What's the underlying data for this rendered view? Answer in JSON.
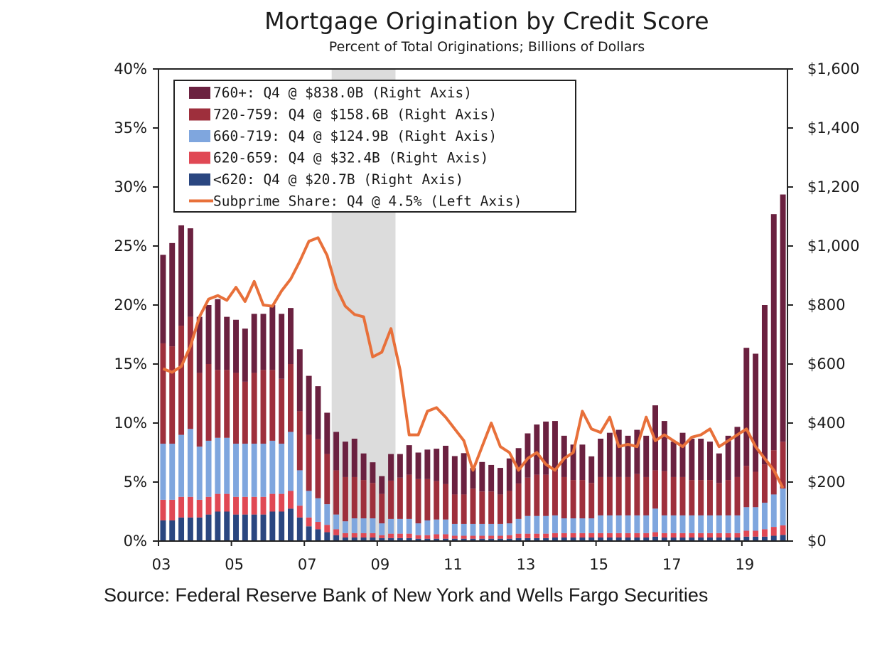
{
  "chart_data": {
    "type": "bar",
    "title": "Mortgage Origination by Credit Score",
    "subtitle": "Percent of Total Originations; Billions of Dollars",
    "source": "Source: Federal Reserve Bank of New York and Wells Fargo Securities",
    "x_ticks": [
      "03",
      "05",
      "07",
      "09",
      "11",
      "13",
      "15",
      "17",
      "19"
    ],
    "left_axis": {
      "ticks": [
        "0%",
        "5%",
        "10%",
        "15%",
        "20%",
        "25%",
        "30%",
        "35%",
        "40%"
      ],
      "ylim": [
        0,
        40
      ]
    },
    "right_axis": {
      "ticks": [
        "$0",
        "$200",
        "$400",
        "$600",
        "$800",
        "$1,000",
        "$1,200",
        "$1,400",
        "$1,600"
      ],
      "ylim": [
        0,
        1600
      ]
    },
    "recession_shading": {
      "start": "2007Q4",
      "end": "2009Q2"
    },
    "start_quarter": "2003Q1",
    "series": [
      {
        "name": "760+: Q4 @ $838.0B (Right Axis)",
        "color": "#6b2140",
        "type": "bar",
        "axis": "right",
        "values": [
          300,
          350,
          340,
          300,
          190,
          200,
          240,
          180,
          180,
          180,
          200,
          190,
          220,
          220,
          190,
          210,
          200,
          180,
          140,
          130,
          120,
          130,
          90,
          70,
          60,
          90,
          80,
          100,
          90,
          100,
          110,
          130,
          130,
          140,
          70,
          100,
          90,
          90,
          110,
          120,
          150,
          170,
          180,
          170,
          140,
          120,
          120,
          90,
          130,
          150,
          160,
          140,
          150,
          140,
          220,
          170,
          120,
          150,
          140,
          140,
          130,
          100,
          150,
          170,
          400,
          400,
          540,
          800,
          838
        ]
      },
      {
        "name": "720-759: Q4 @ $158.6B (Right Axis)",
        "color": "#9e2f3c",
        "type": "bar",
        "axis": "right",
        "values": [
          340,
          330,
          370,
          380,
          250,
          260,
          230,
          230,
          240,
          210,
          240,
          250,
          240,
          220,
          230,
          200,
          190,
          200,
          170,
          150,
          150,
          140,
          130,
          120,
          100,
          130,
          140,
          150,
          150,
          140,
          130,
          120,
          100,
          100,
          120,
          110,
          110,
          100,
          110,
          120,
          130,
          140,
          140,
          150,
          140,
          130,
          130,
          120,
          130,
          130,
          130,
          130,
          140,
          130,
          130,
          150,
          130,
          130,
          120,
          120,
          120,
          110,
          120,
          130,
          140,
          120,
          130,
          150,
          158.6
        ]
      },
      {
        "name": "660-719: Q4 @ $124.9B (Right Axis)",
        "color": "#7fa6de",
        "type": "bar",
        "axis": "right",
        "values": [
          190,
          190,
          210,
          230,
          180,
          190,
          190,
          190,
          180,
          180,
          180,
          180,
          180,
          170,
          200,
          120,
          90,
          80,
          70,
          50,
          40,
          50,
          50,
          50,
          40,
          50,
          50,
          50,
          40,
          50,
          50,
          50,
          40,
          40,
          40,
          40,
          40,
          40,
          40,
          50,
          60,
          60,
          60,
          60,
          50,
          50,
          50,
          50,
          60,
          60,
          60,
          60,
          60,
          60,
          80,
          60,
          60,
          60,
          60,
          60,
          60,
          60,
          60,
          60,
          80,
          80,
          90,
          110,
          124.9
        ]
      },
      {
        "name": "620-659: Q4 @ $32.4B (Right Axis)",
        "color": "#e04854",
        "type": "bar",
        "axis": "right",
        "values": [
          70,
          70,
          70,
          70,
          60,
          60,
          60,
          60,
          60,
          60,
          60,
          60,
          60,
          60,
          60,
          40,
          30,
          25,
          25,
          20,
          15,
          15,
          15,
          15,
          10,
          15,
          15,
          15,
          12,
          12,
          15,
          15,
          10,
          10,
          10,
          10,
          10,
          10,
          12,
          15,
          15,
          15,
          15,
          15,
          15,
          15,
          15,
          15,
          15,
          15,
          15,
          15,
          15,
          15,
          15,
          15,
          15,
          15,
          15,
          15,
          15,
          15,
          15,
          15,
          20,
          20,
          25,
          30,
          32.4
        ]
      },
      {
        "name": "<620: Q4 @ $20.7B (Right Axis)",
        "color": "#2a4680",
        "type": "bar",
        "axis": "right",
        "values": [
          70,
          70,
          80,
          80,
          80,
          90,
          100,
          100,
          90,
          90,
          90,
          90,
          100,
          100,
          110,
          80,
          50,
          40,
          30,
          20,
          12,
          12,
          12,
          12,
          10,
          10,
          10,
          10,
          8,
          8,
          8,
          8,
          8,
          8,
          8,
          8,
          8,
          8,
          8,
          10,
          10,
          10,
          10,
          12,
          12,
          12,
          12,
          12,
          12,
          12,
          12,
          12,
          12,
          12,
          15,
          12,
          12,
          12,
          12,
          12,
          12,
          12,
          12,
          12,
          15,
          15,
          15,
          18,
          20.7
        ]
      },
      {
        "name": "Subprime Share: Q4 @ 4.5% (Left Axis)",
        "color": "#e8703a",
        "type": "line",
        "axis": "left",
        "values": [
          14.6,
          14.3,
          14.8,
          16.5,
          19.0,
          20.5,
          20.8,
          20.4,
          21.5,
          20.3,
          22.0,
          20.0,
          19.9,
          21.2,
          22.2,
          23.7,
          25.4,
          25.7,
          24.2,
          21.5,
          19.9,
          19.2,
          19.0,
          15.6,
          16.0,
          18.0,
          14.5,
          9.0,
          9.0,
          11.0,
          11.3,
          10.5,
          9.5,
          8.5,
          6.0,
          8.0,
          10.0,
          8.0,
          7.5,
          6.0,
          7.0,
          7.5,
          6.5,
          6.0,
          7.0,
          7.5,
          11.0,
          9.5,
          9.2,
          10.5,
          8.0,
          8.2,
          8.0,
          10.5,
          8.5,
          9.0,
          8.5,
          8.0,
          8.8,
          9.0,
          9.5,
          8.0,
          8.5,
          9.0,
          9.5,
          8.0,
          7.0,
          6.0,
          4.5
        ]
      }
    ]
  }
}
